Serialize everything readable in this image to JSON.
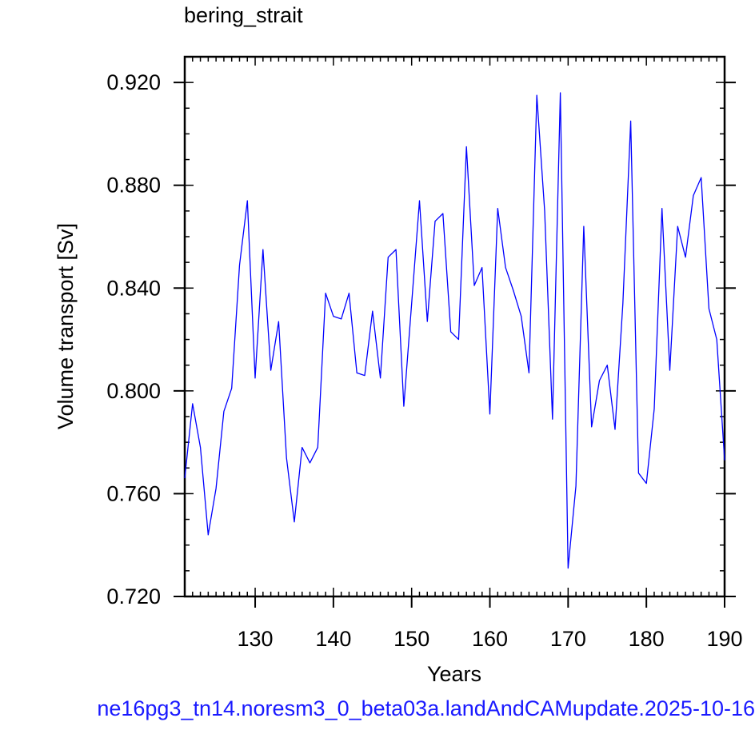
{
  "chart_data": {
    "type": "line",
    "title": "bering_strait",
    "xlabel": "Years",
    "ylabel": "Volume transport [Sv]",
    "xlim": [
      121,
      190
    ],
    "ylim": [
      0.72,
      0.93
    ],
    "x_ticks": [
      "130",
      "140",
      "150",
      "160",
      "170",
      "180",
      "190"
    ],
    "y_ticks": [
      "0.720",
      "0.760",
      "0.800",
      "0.840",
      "0.880",
      "0.920"
    ],
    "line_color": "#0000ff",
    "series": [
      {
        "x": [
          121,
          122,
          123,
          124,
          125,
          126,
          127,
          128,
          129,
          130,
          131,
          132,
          133,
          134,
          135,
          136,
          137,
          138,
          139,
          140,
          141,
          142,
          143,
          144,
          145,
          146,
          147,
          148,
          149,
          150,
          151,
          152,
          153,
          154,
          155,
          156,
          157,
          158,
          159,
          160,
          161,
          162,
          163,
          164,
          165,
          166,
          167,
          168,
          169,
          170,
          171,
          172,
          173,
          174,
          175,
          176,
          177,
          178,
          179,
          180,
          181,
          182,
          183,
          184,
          185,
          186,
          187,
          188,
          189,
          190
        ],
        "values": [
          0.766,
          0.795,
          0.778,
          0.744,
          0.762,
          0.792,
          0.801,
          0.849,
          0.874,
          0.805,
          0.855,
          0.808,
          0.827,
          0.774,
          0.749,
          0.778,
          0.772,
          0.778,
          0.838,
          0.829,
          0.828,
          0.838,
          0.807,
          0.806,
          0.831,
          0.805,
          0.852,
          0.855,
          0.794,
          0.834,
          0.874,
          0.827,
          0.866,
          0.869,
          0.823,
          0.82,
          0.895,
          0.841,
          0.848,
          0.791,
          0.871,
          0.848,
          0.839,
          0.829,
          0.807,
          0.915,
          0.87,
          0.789,
          0.916,
          0.731,
          0.763,
          0.864,
          0.786,
          0.804,
          0.81,
          0.785,
          0.834,
          0.905,
          0.768,
          0.764,
          0.793,
          0.871,
          0.808,
          0.864,
          0.852,
          0.876,
          0.883,
          0.832,
          0.82,
          0.773
        ]
      }
    ]
  },
  "footer_text": "ne16pg3_tn14.noresm3_0_beta03a.landAndCAMupdate.2025-10-16"
}
